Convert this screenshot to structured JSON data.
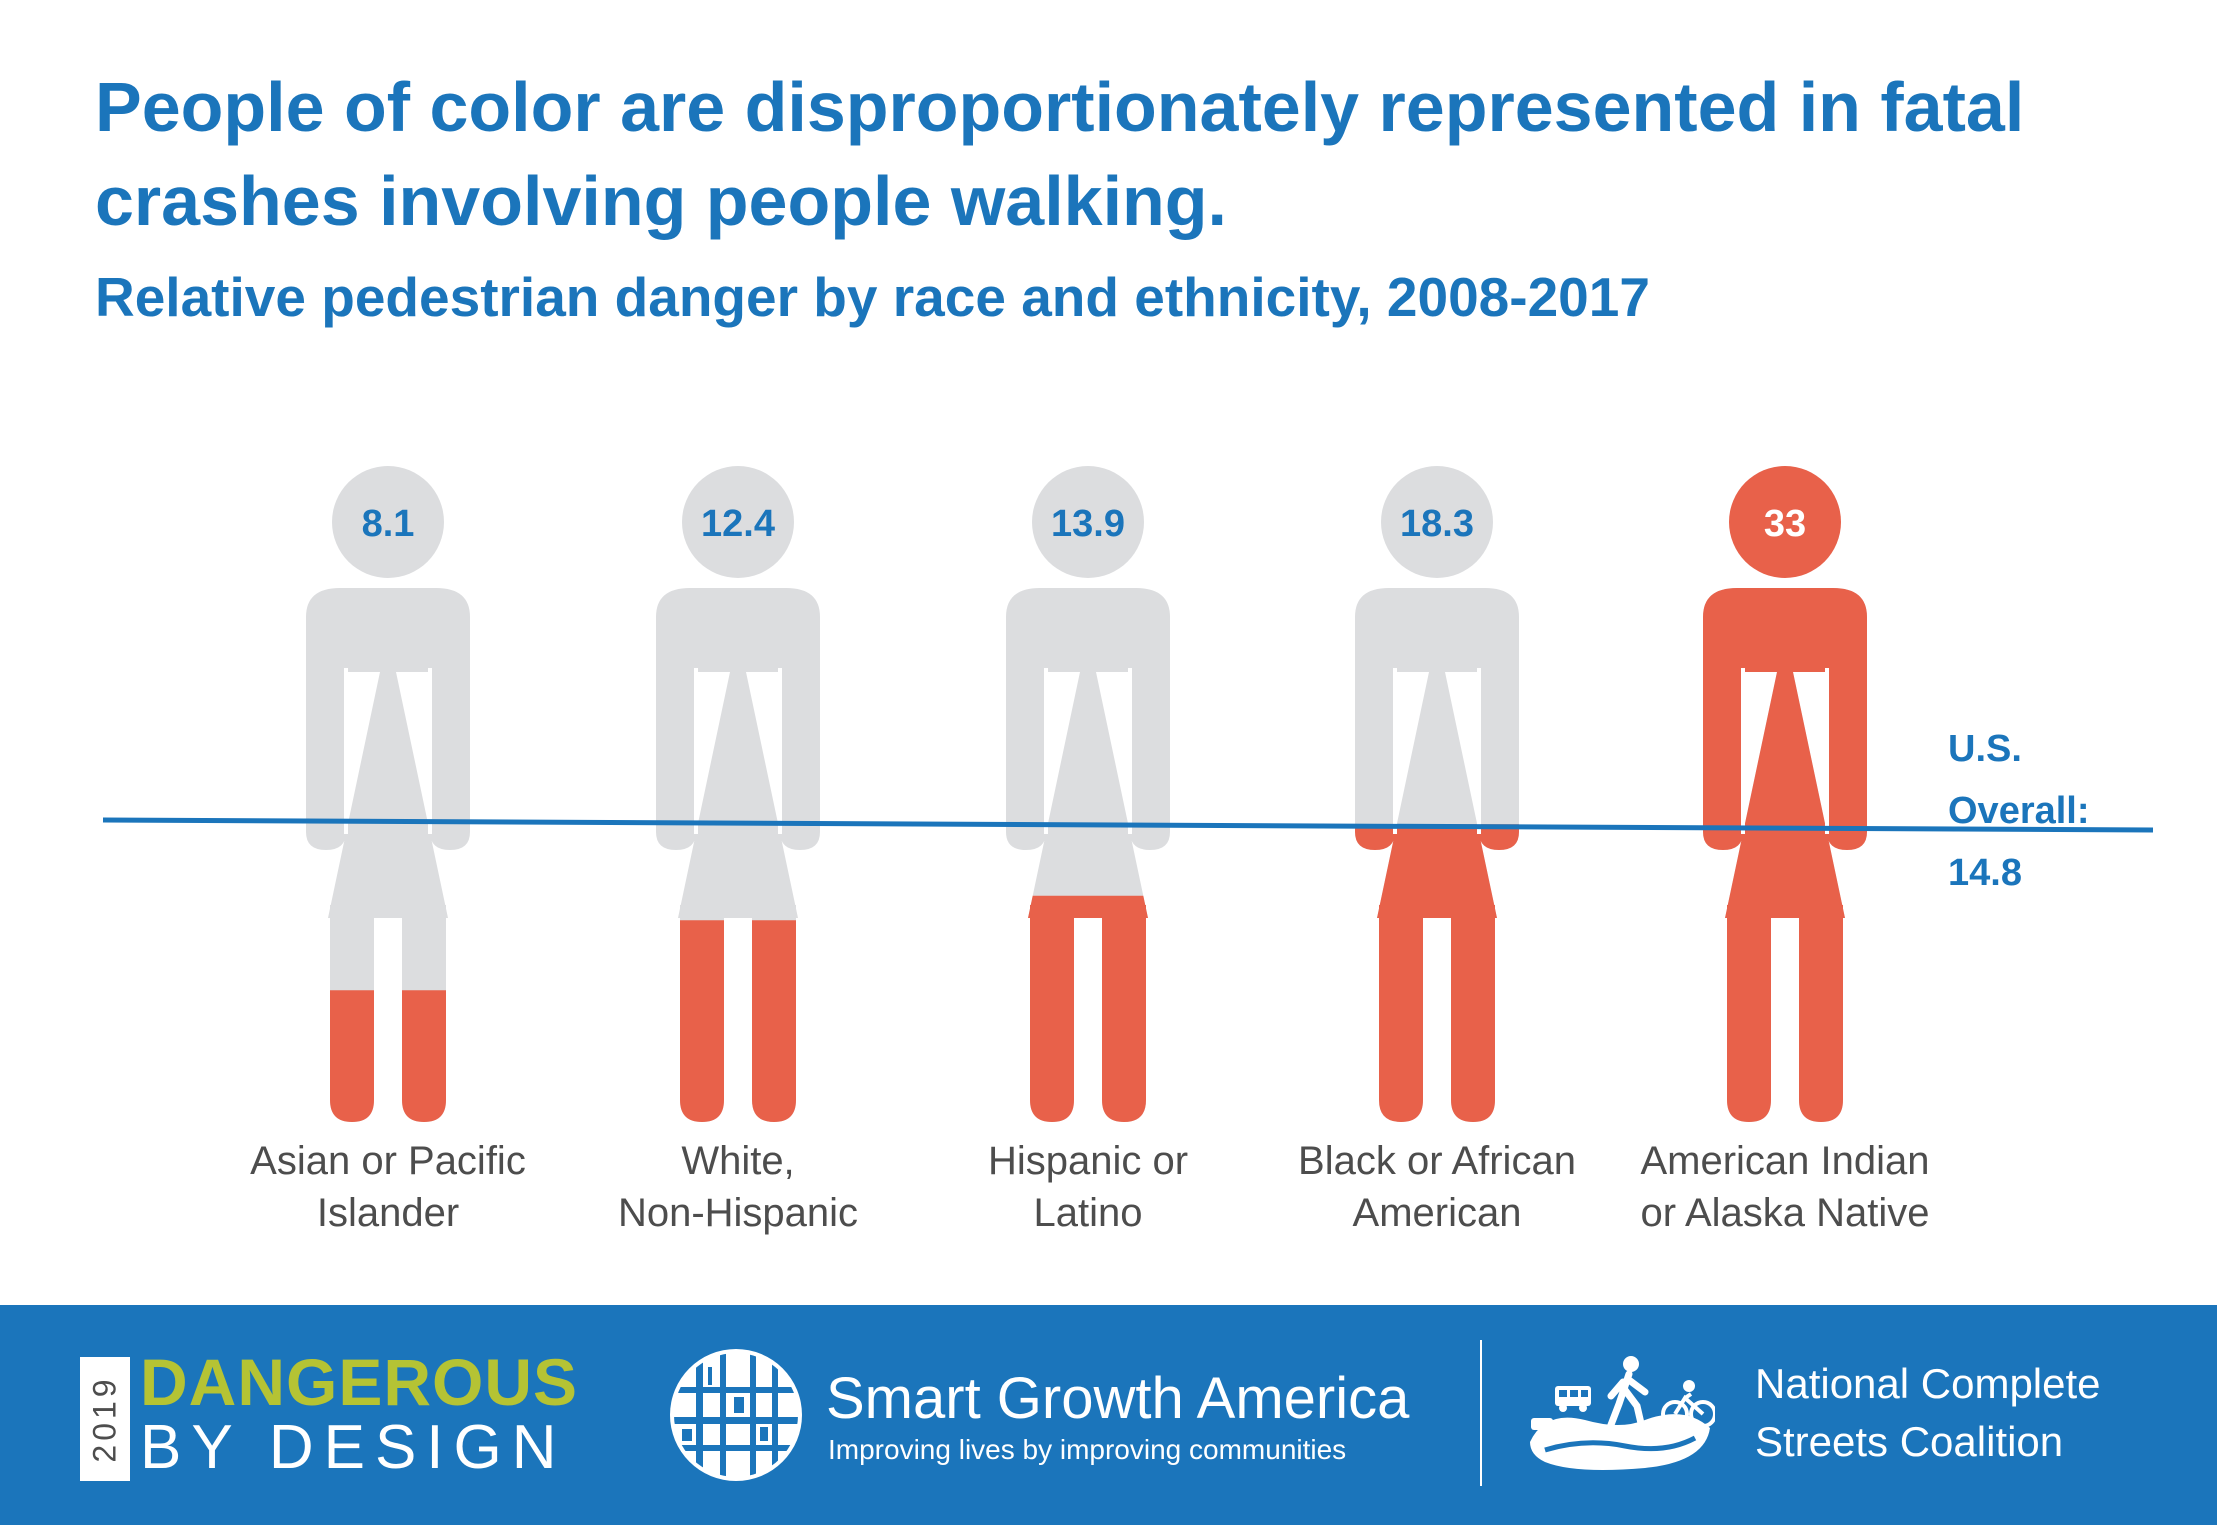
{
  "header": {
    "title": "People of color are disproportionately represented in fatal crashes involving people walking.",
    "subtitle": "Relative pedestrian danger by race and ethnicity, 2008-2017"
  },
  "chart_data": {
    "type": "bar",
    "title": "People of color are disproportionately represented in fatal crashes involving people walking.",
    "subtitle": "Relative pedestrian danger by race and ethnicity, 2008-2017",
    "categories": [
      [
        "Asian or Pacific",
        "Islander"
      ],
      [
        "White,",
        "Non-Hispanic"
      ],
      [
        "Hispanic or",
        "Latino"
      ],
      [
        "Black or African",
        "American"
      ],
      [
        "American Indian",
        "or Alaska Native"
      ]
    ],
    "values": [
      8.1,
      12.4,
      13.9,
      18.3,
      33
    ],
    "value_labels": [
      "8.1",
      "12.4",
      "13.9",
      "18.3",
      "33"
    ],
    "ylim": [
      0,
      33
    ],
    "reference_line": {
      "label_lines": [
        "U.S.",
        "Overall:"
      ],
      "value_label": "14.8",
      "value": 14.8
    },
    "grid": false,
    "legend": "none",
    "colors": {
      "fill": "#e8614a",
      "empty": "#dcdddf",
      "text": "#1b75bb",
      "line": "#1b75bb"
    }
  },
  "footer": {
    "year": "2019",
    "dbd_line1": "DANGEROUS",
    "dbd_line2": "BY DESIGN",
    "sga_name": "Smart Growth America",
    "sga_tagline": "Improving lives by improving communities",
    "ncsc_name": "National Complete Streets Coalition",
    "colors": {
      "background": "#1b75bb",
      "accent": "#b5c334"
    }
  }
}
